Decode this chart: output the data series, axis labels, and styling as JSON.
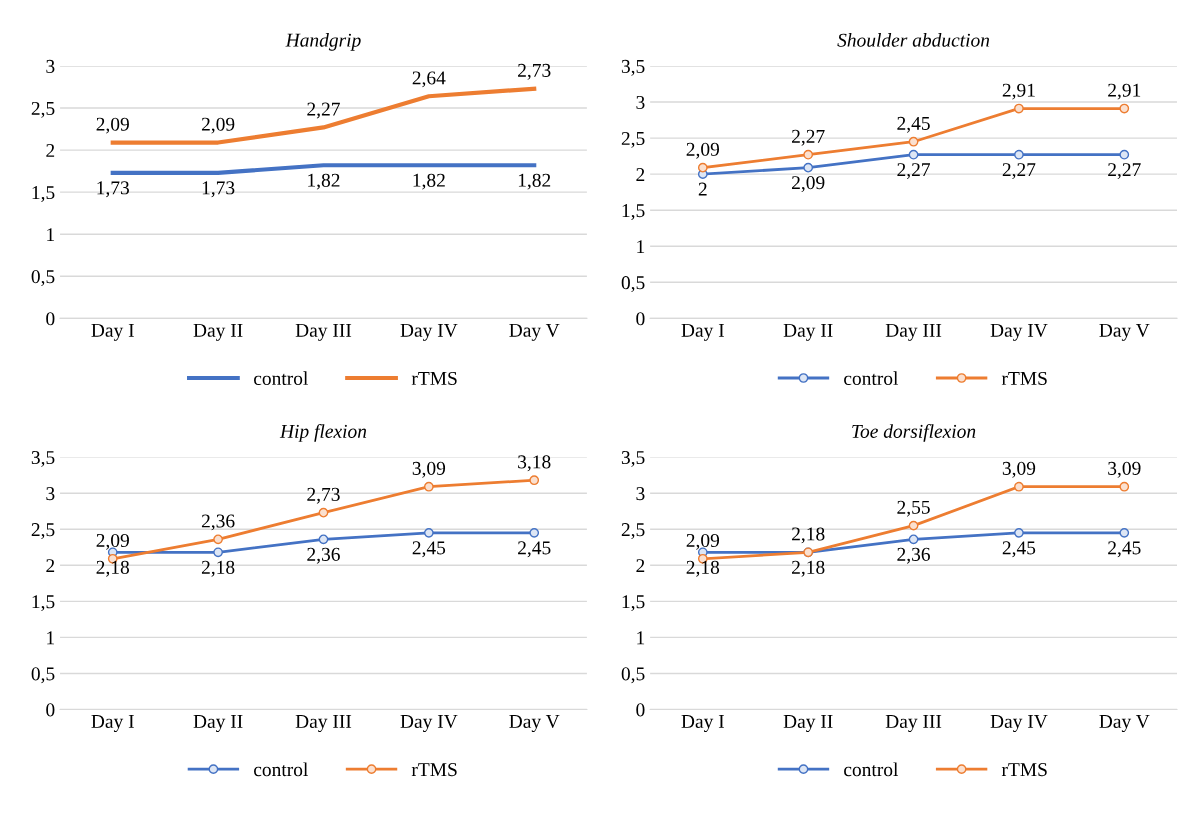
{
  "chart_data": [
    {
      "type": "line",
      "title": "Handgrip",
      "categories": [
        "Day I",
        "Day II",
        "Day III",
        "Day IV",
        "Day V"
      ],
      "ylim": [
        0,
        3
      ],
      "yticks": [
        0,
        {
          "value": 0.5,
          "label": "0,5"
        },
        1,
        {
          "value": 1.5,
          "label": "1,5"
        },
        2,
        {
          "value": 2.5,
          "label": "2,5"
        },
        3
      ],
      "grid": "y",
      "legend": "bottom",
      "marker": "none",
      "series": [
        {
          "name": "control",
          "color": "#4472c4",
          "values": [
            1.73,
            1.73,
            1.82,
            1.82,
            1.82
          ],
          "value_labels": [
            "1,73",
            "1,73",
            "1,82",
            "1,82",
            "1,82"
          ]
        },
        {
          "name": "rTMS",
          "color": "#ed7d31",
          "values": [
            2.09,
            2.09,
            2.27,
            2.64,
            2.73
          ],
          "value_labels": [
            "2,09",
            "2,09",
            "2,27",
            "2,64",
            "2,73"
          ]
        }
      ]
    },
    {
      "type": "line",
      "title": "Shoulder abduction",
      "categories": [
        "Day I",
        "Day II",
        "Day III",
        "Day IV",
        "Day V"
      ],
      "ylim": [
        0,
        3.5
      ],
      "yticks": [
        0,
        {
          "value": 0.5,
          "label": "0,5"
        },
        1,
        {
          "value": 1.5,
          "label": "1,5"
        },
        2,
        {
          "value": 2.5,
          "label": "2,5"
        },
        3,
        {
          "value": 3.5,
          "label": "3,5"
        }
      ],
      "grid": "y",
      "legend": "bottom",
      "marker": "circle",
      "series": [
        {
          "name": "control",
          "color": "#4472c4",
          "values": [
            2,
            2.09,
            2.27,
            2.27,
            2.27
          ],
          "value_labels": [
            "2",
            "2,09",
            "2,27",
            "2,27",
            "2,27"
          ]
        },
        {
          "name": "rTMS",
          "color": "#ed7d31",
          "values": [
            2.09,
            2.27,
            2.45,
            2.91,
            2.91
          ],
          "value_labels": [
            "2,09",
            "2,27",
            "2,45",
            "2,91",
            "2,91"
          ]
        }
      ]
    },
    {
      "type": "line",
      "title": "Hip flexion",
      "categories": [
        "Day I",
        "Day II",
        "Day III",
        "Day IV",
        "Day V"
      ],
      "ylim": [
        0,
        3.5
      ],
      "yticks": [
        0,
        {
          "value": 0.5,
          "label": "0,5"
        },
        1,
        {
          "value": 1.5,
          "label": "1,5"
        },
        2,
        {
          "value": 2.5,
          "label": "2,5"
        },
        3,
        {
          "value": 3.5,
          "label": "3,5"
        }
      ],
      "grid": "y",
      "legend": "bottom",
      "marker": "circle",
      "series": [
        {
          "name": "control",
          "color": "#4472c4",
          "values": [
            2.18,
            2.18,
            2.36,
            2.45,
            2.45
          ],
          "value_labels": [
            "2,18",
            "2,18",
            "2,36",
            "2,45",
            "2,45"
          ]
        },
        {
          "name": "rTMS",
          "color": "#ed7d31",
          "values": [
            2.09,
            2.36,
            2.73,
            3.09,
            3.18
          ],
          "value_labels": [
            "2,09",
            "2,36",
            "2,73",
            "3,09",
            "3,18"
          ]
        }
      ]
    },
    {
      "type": "line",
      "title": "Toe dorsiflexion",
      "categories": [
        "Day I",
        "Day II",
        "Day III",
        "Day IV",
        "Day V"
      ],
      "ylim": [
        0,
        3.5
      ],
      "yticks": [
        0,
        {
          "value": 0.5,
          "label": "0,5"
        },
        1,
        {
          "value": 1.5,
          "label": "1,5"
        },
        2,
        {
          "value": 2.5,
          "label": "2,5"
        },
        3,
        {
          "value": 3.5,
          "label": "3,5"
        }
      ],
      "grid": "y",
      "legend": "bottom",
      "marker": "circle",
      "series": [
        {
          "name": "control",
          "color": "#4472c4",
          "values": [
            2.18,
            2.18,
            2.36,
            2.45,
            2.45
          ],
          "value_labels": [
            "2,18",
            "2,18",
            "2,36",
            "2,45",
            "2,45"
          ]
        },
        {
          "name": "rTMS",
          "color": "#ed7d31",
          "values": [
            2.09,
            2.18,
            2.55,
            3.09,
            3.09
          ],
          "value_labels": [
            "2,09",
            "2,18",
            "2,55",
            "3,09",
            "3,09"
          ]
        }
      ]
    }
  ]
}
